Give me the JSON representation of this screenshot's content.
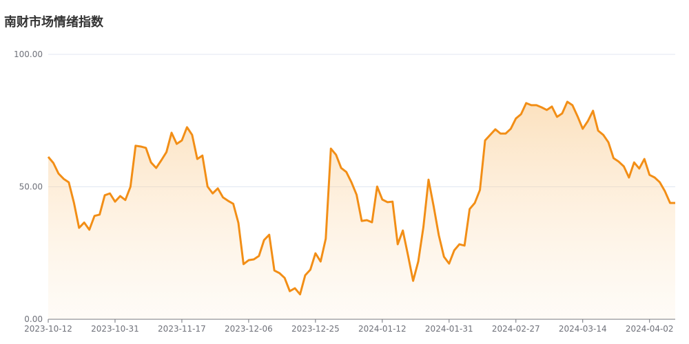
{
  "chart_data": {
    "type": "line",
    "title": "南财市场情绪指数",
    "categories": [
      "2023-10-12",
      null,
      null,
      null,
      null,
      null,
      null,
      null,
      null,
      null,
      null,
      null,
      null,
      "2023-10-31",
      null,
      null,
      null,
      null,
      null,
      null,
      null,
      null,
      null,
      null,
      null,
      null,
      "2023-11-17",
      null,
      null,
      null,
      null,
      null,
      null,
      null,
      null,
      null,
      null,
      null,
      null,
      "2023-12-06",
      null,
      null,
      null,
      null,
      null,
      null,
      null,
      null,
      null,
      null,
      null,
      null,
      "2023-12-25",
      null,
      null,
      null,
      null,
      null,
      null,
      null,
      null,
      null,
      null,
      null,
      null,
      "2024-01-12",
      null,
      null,
      null,
      null,
      null,
      null,
      null,
      null,
      null,
      null,
      null,
      null,
      "2024-01-31",
      null,
      null,
      null,
      null,
      null,
      null,
      null,
      null,
      null,
      null,
      null,
      null,
      "2024-02-27",
      null,
      null,
      null,
      null,
      null,
      null,
      null,
      null,
      null,
      null,
      null,
      null,
      "2024-03-14",
      null,
      null,
      null,
      null,
      null,
      null,
      null,
      null,
      null,
      null,
      null,
      null,
      "2024-04-02",
      null,
      null,
      null,
      null,
      null
    ],
    "series": [
      {
        "color": "#f28e16",
        "values": [
          61.3,
          59,
          55,
          53,
          51.7,
          44,
          34.5,
          36.5,
          33.8,
          39,
          39.5,
          46.8,
          47.5,
          44.4,
          46.5,
          45,
          50,
          65.5,
          65.2,
          64.7,
          59.2,
          57.1,
          60,
          63.1,
          70.4,
          66.2,
          67.5,
          72.5,
          69.6,
          60.5,
          61.8,
          50.1,
          47.5,
          49.4,
          46,
          44.7,
          43.6,
          36.4,
          20.8,
          22.3,
          22.6,
          23.9,
          29.9,
          31.9,
          18.4,
          17.4,
          15.6,
          10.6,
          11.7,
          9.4,
          16.6,
          18.7,
          24.9,
          21.8,
          30.4,
          64.4,
          62.1,
          57.1,
          55.6,
          51.7,
          47,
          37.1,
          37.4,
          36.6,
          50.1,
          45.2,
          44.2,
          44.4,
          28.3,
          33.5,
          24.2,
          14.5,
          21.8,
          34.8,
          52.7,
          42.6,
          31.7,
          23.6,
          21,
          26,
          28.3,
          27.8,
          41.6,
          43.9,
          48.8,
          67.5,
          69.6,
          71.7,
          70.1,
          70.1,
          71.9,
          75.8,
          77.4,
          81.6,
          80.8,
          80.8,
          80,
          79,
          80.3,
          76.4,
          77.7,
          82.1,
          80.8,
          76.6,
          71.9,
          74.8,
          78.7,
          71.2,
          69.6,
          66.8,
          60.8,
          59.5,
          57.7,
          53.5,
          59.2,
          56.9,
          60.5,
          54.5,
          53.5,
          51.7,
          48.3,
          43.9,
          43.9
        ]
      }
    ],
    "ylim": [
      0,
      100
    ],
    "yticks": [
      {
        "value": 0,
        "label": "0.00"
      },
      {
        "value": 50,
        "label": "50.00"
      },
      {
        "value": 100,
        "label": "100.00"
      }
    ],
    "grid": true
  }
}
